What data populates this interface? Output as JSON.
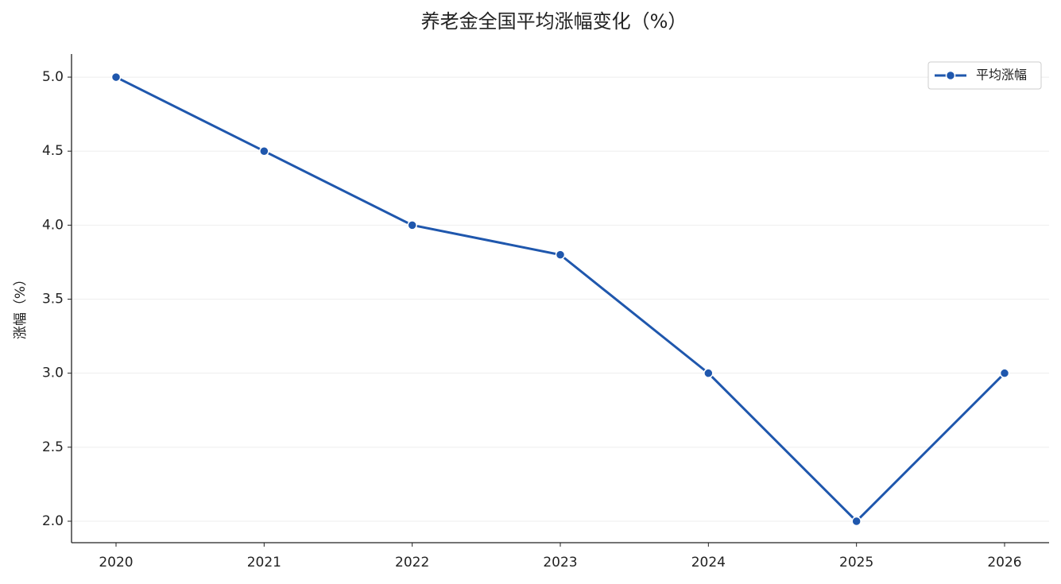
{
  "chart_data": {
    "type": "line",
    "title": "养老金全国平均涨幅变化（%）",
    "y_label": "涨幅（%）",
    "categories": [
      "2020",
      "2021",
      "2022",
      "2023",
      "2024",
      "2025",
      "2026"
    ],
    "series": [
      {
        "name": "平均涨幅",
        "color": "#1f57ad",
        "values": [
          5.0,
          4.5,
          4.0,
          3.8,
          3.0,
          2.0,
          3.0
        ]
      }
    ],
    "ylim": [
      1.855,
      5.156
    ],
    "yticks": [
      {
        "value": 2,
        "label": "2.0"
      },
      2.5,
      {
        "value": 3,
        "label": "3.0"
      },
      3.5,
      {
        "value": 4,
        "label": "4.0"
      },
      4.5,
      {
        "value": 5,
        "label": "5.0"
      }
    ],
    "grid": true,
    "legend": "upper right"
  }
}
